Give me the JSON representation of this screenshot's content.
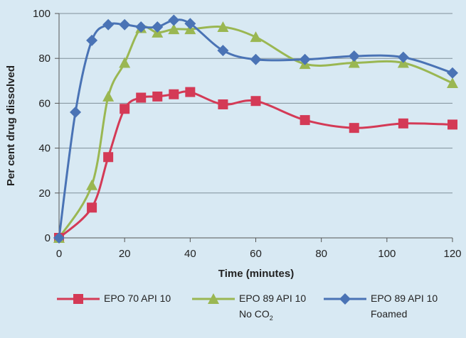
{
  "chart_data": {
    "type": "line",
    "xlabel": "Time (minutes)",
    "ylabel": "Per cent drug dissolved",
    "xlim": [
      0,
      120
    ],
    "ylim": [
      0,
      100
    ],
    "xticks": [
      0,
      20,
      40,
      60,
      80,
      100,
      120
    ],
    "yticks": [
      0,
      20,
      40,
      60,
      80,
      100
    ],
    "grid": "horizontal",
    "legend_position": "bottom",
    "series": [
      {
        "name": "EPO 70 API 10",
        "sub_label": "",
        "color": "#d43a56",
        "marker": "square",
        "x": [
          0,
          10,
          15,
          20,
          25,
          30,
          35,
          40,
          50,
          60,
          75,
          90,
          105,
          120
        ],
        "y": [
          0,
          13.5,
          36,
          57.5,
          62.5,
          63,
          64,
          65,
          59.5,
          61,
          52.5,
          49,
          51,
          50.5
        ]
      },
      {
        "name": "EPO 89 API 10",
        "sub_label": "No CO",
        "sub_label_subscript": "2",
        "color": "#9ab752",
        "marker": "triangle",
        "x": [
          0,
          10,
          15,
          20,
          25,
          30,
          35,
          40,
          50,
          60,
          75,
          90,
          105,
          120
        ],
        "y": [
          0,
          23.5,
          63,
          78,
          93.5,
          91.5,
          93,
          93,
          94,
          89.5,
          77.5,
          78,
          78,
          69
        ]
      },
      {
        "name": "EPO 89 API 10",
        "sub_label": "Foamed",
        "color": "#4a73b5",
        "marker": "diamond",
        "x": [
          0,
          5,
          10,
          15,
          20,
          25,
          30,
          35,
          40,
          50,
          60,
          75,
          90,
          105,
          120
        ],
        "y": [
          0,
          56,
          88,
          95,
          95,
          94,
          94,
          97,
          95.5,
          83.5,
          79.5,
          79.5,
          81,
          80.5,
          73.5
        ]
      }
    ]
  }
}
